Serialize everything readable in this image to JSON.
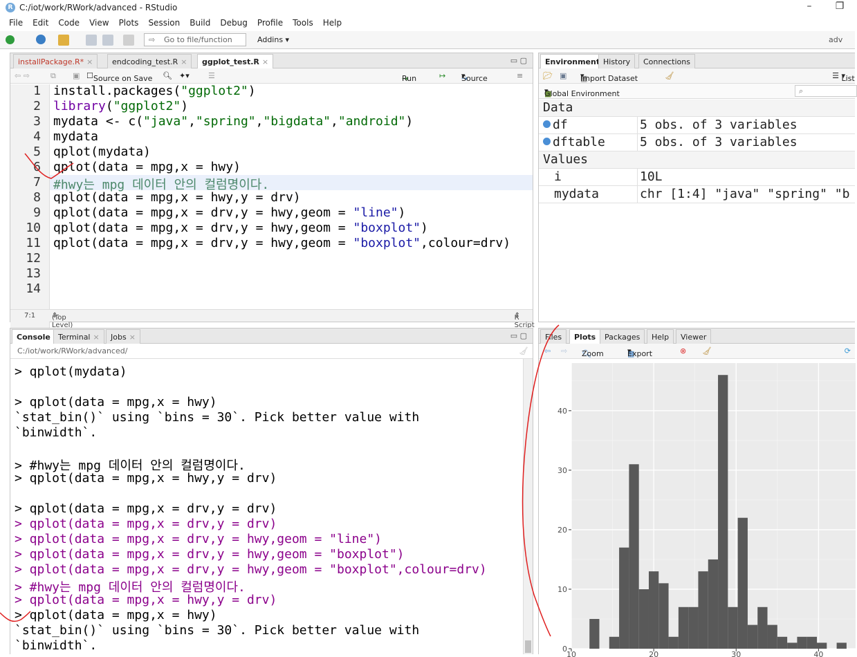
{
  "window": {
    "title": "C:/iot/work/RWork/advanced - RStudio",
    "minimize_glyph": "–",
    "restore_glyph": "❐"
  },
  "menu": [
    "File",
    "Edit",
    "Code",
    "View",
    "Plots",
    "Session",
    "Build",
    "Debug",
    "Profile",
    "Tools",
    "Help"
  ],
  "toolbar": {
    "goto_placeholder": "Go to file/function",
    "addins_label": "Addins",
    "project_label": "adv"
  },
  "editor": {
    "tabs": [
      {
        "label": "installPackage.R*",
        "active": false,
        "modified": true
      },
      {
        "label": "endcoding_test.R",
        "active": false
      },
      {
        "label": "ggplot_test.R",
        "active": true
      }
    ],
    "source_on_save": "Source on Save",
    "run_label": "Run",
    "source_label": "Source",
    "line_numbers": [
      "1",
      "2",
      "3",
      "4",
      "5",
      "6",
      "7",
      "8",
      "9",
      "10",
      "11",
      "12",
      "13",
      "14"
    ],
    "current_line_index": 6,
    "cursor_pos": "7:1",
    "scope": "(Top Level)",
    "file_type": "R Script"
  },
  "environment": {
    "tabs": [
      "Environment",
      "History",
      "Connections"
    ],
    "import_label": "Import Dataset",
    "list_label": "List",
    "scope_label": "Global Environment",
    "data_header": "Data",
    "values_header": "Values",
    "data_rows": [
      {
        "name": "df",
        "value": "5 obs. of 3 variables"
      },
      {
        "name": "dftable",
        "value": "5 obs. of 3 variables"
      }
    ],
    "value_rows": [
      {
        "name": "i",
        "value": "10L"
      },
      {
        "name": "mydata",
        "value": "chr [1:4] \"java\" \"spring\" \"b"
      }
    ]
  },
  "console": {
    "tabs": [
      "Console",
      "Terminal",
      "Jobs"
    ],
    "path": "C:/iot/work/RWork/advanced/",
    "lines": [
      {
        "text": "> qplot(mydata)",
        "color": "black"
      },
      {
        "text": "",
        "color": "black"
      },
      {
        "text": "> qplot(data = mpg,x = hwy)",
        "color": "black"
      },
      {
        "text": "`stat_bin()` using `bins = 30`. Pick better value with",
        "color": "black"
      },
      {
        "text": "`binwidth`.",
        "color": "black"
      },
      {
        "text": "",
        "color": "black"
      },
      {
        "text": "> #hwy는 mpg 데이터 안의 컬럼명이다.",
        "color": "black"
      },
      {
        "text": "> qplot(data = mpg,x = hwy,y = drv)",
        "color": "black"
      },
      {
        "text": "",
        "color": "black"
      },
      {
        "text": "> qplot(data = mpg,x = drv,y = drv)",
        "color": "black"
      },
      {
        "text": "> qplot(data = mpg,x = drv,y = drv)",
        "color": "purple"
      },
      {
        "text": "> qplot(data = mpg,x = drv,y = hwy,geom = \"line\")",
        "color": "purple"
      },
      {
        "text": "> qplot(data = mpg,x = drv,y = hwy,geom = \"boxplot\")",
        "color": "purple"
      },
      {
        "text": "> qplot(data = mpg,x = drv,y = hwy,geom = \"boxplot\",colour=drv)",
        "color": "purple"
      },
      {
        "text": "> #hwy는 mpg 데이터 안의 컬럼명이다.",
        "color": "purple"
      },
      {
        "text": "> qplot(data = mpg,x = hwy,y = drv)",
        "color": "purple"
      },
      {
        "text": "> qplot(data = mpg,x = hwy)",
        "color": "black"
      },
      {
        "text": "`stat_bin()` using `bins = 30`. Pick better value with",
        "color": "black"
      },
      {
        "text": "`binwidth`.",
        "color": "black"
      }
    ]
  },
  "plots": {
    "tabs": [
      "Files",
      "Plots",
      "Packages",
      "Help",
      "Viewer"
    ],
    "zoom_label": "Zoom",
    "export_label": "Export"
  },
  "chart_data": {
    "type": "bar",
    "x_binstart": [
      11.0,
      12.2,
      13.4,
      14.6,
      15.8,
      17.0,
      18.2,
      19.4,
      20.6,
      21.8,
      23.0,
      24.2,
      25.4,
      26.6,
      27.8,
      29.0,
      30.2,
      31.4,
      32.6,
      33.8,
      35.0,
      36.2,
      37.4,
      38.6,
      39.8,
      41.0,
      42.2,
      43.4
    ],
    "values": [
      0,
      5,
      0,
      2,
      17,
      31,
      10,
      13,
      11,
      2,
      7,
      7,
      13,
      15,
      46,
      7,
      22,
      4,
      7,
      4,
      2,
      1,
      2,
      2,
      1,
      0,
      1,
      0
    ],
    "bin_width": 1.2,
    "x_ticks": [
      "10",
      "20",
      "30",
      "40"
    ],
    "y_ticks": [
      "0",
      "10",
      "20",
      "30",
      "40"
    ],
    "xlim": [
      10,
      44.5
    ],
    "ylim": [
      0,
      48
    ],
    "grid": true,
    "background": "#ebebeb",
    "bar_color": "#595959"
  },
  "annotations": {
    "ink_color": "#e02020"
  }
}
